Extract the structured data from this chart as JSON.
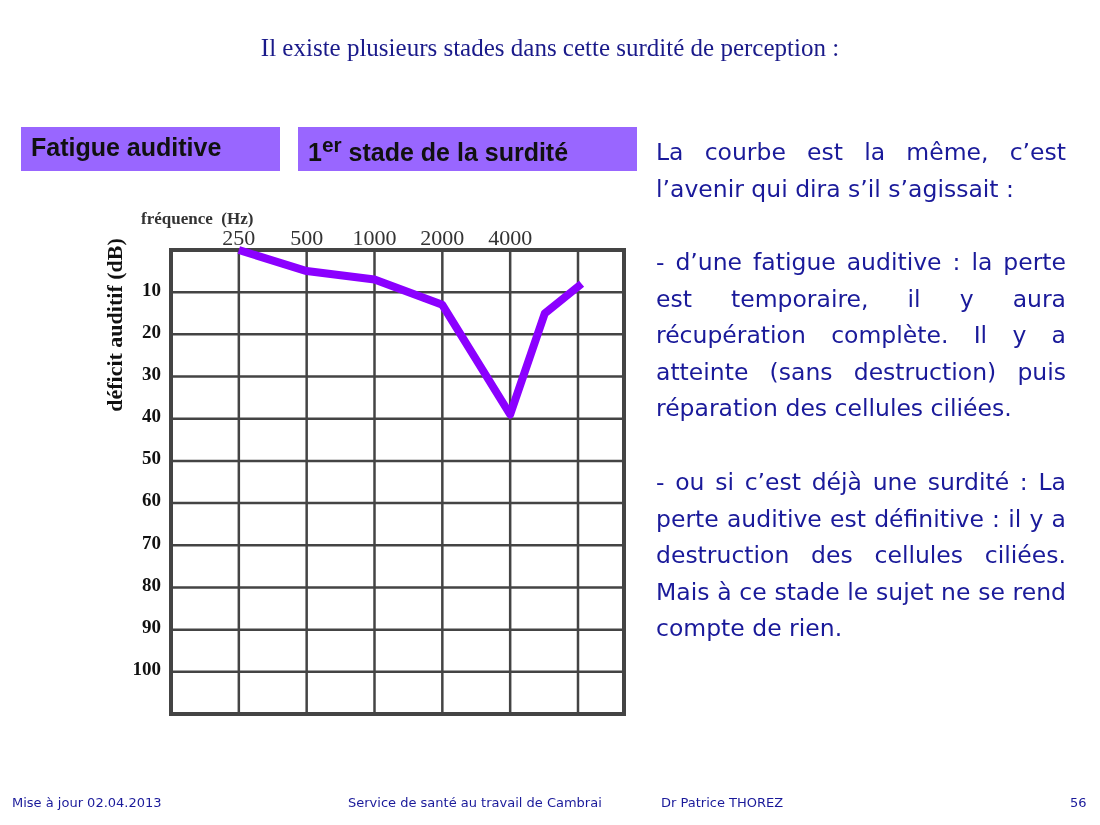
{
  "chart_data": {
    "type": "line",
    "title": "Il existe plusieurs stades dans cette surdité de perception :",
    "xlabel": "fréquence  (Hz)",
    "ylabel": "déficit auditif (dB)",
    "x": [
      250,
      500,
      1000,
      2000,
      4000,
      5700,
      8300
    ],
    "series": [
      {
        "color": "#8b00ff",
        "values": [
          0,
          5,
          7,
          13,
          39,
          15,
          8
        ]
      }
    ],
    "log": "x",
    "xlim": [
      125,
      12800
    ],
    "xticks": [
      250,
      500,
      1000,
      2000,
      4000,
      {
        "value": 8000,
        "label": null
      }
    ],
    "ylim": [
      110,
      0
    ],
    "yticks": [
      {
        "value": 0,
        "label": null
      },
      10,
      20,
      30,
      40,
      50,
      60,
      70,
      80,
      90,
      100
    ],
    "grid": true,
    "marker": "none",
    "line_style": "solid",
    "annotations": [
      "Fatigue auditive",
      "1$^{er}$ stade de la surdité",
      "La courbe est la même, c’est l’avenir qui dira s’il s’agissait :",
      "- d’une fatigue auditive : la perte est temporaire, il y aura récupération complète. Il y a atteinte (sans destruction) puis réparation des cellules ciliées.",
      "-  ou si c’est déjà une surdité : La perte auditive est définitive : il y a destruction des cellules ciliées. Mais à ce stade le sujet ne se rend compte de rien.",
      "Mise à jour 02.04.2013",
      "Service de santé au travail de Cambrai",
      "Dr Patrice THOREZ",
      "56"
    ]
  }
}
